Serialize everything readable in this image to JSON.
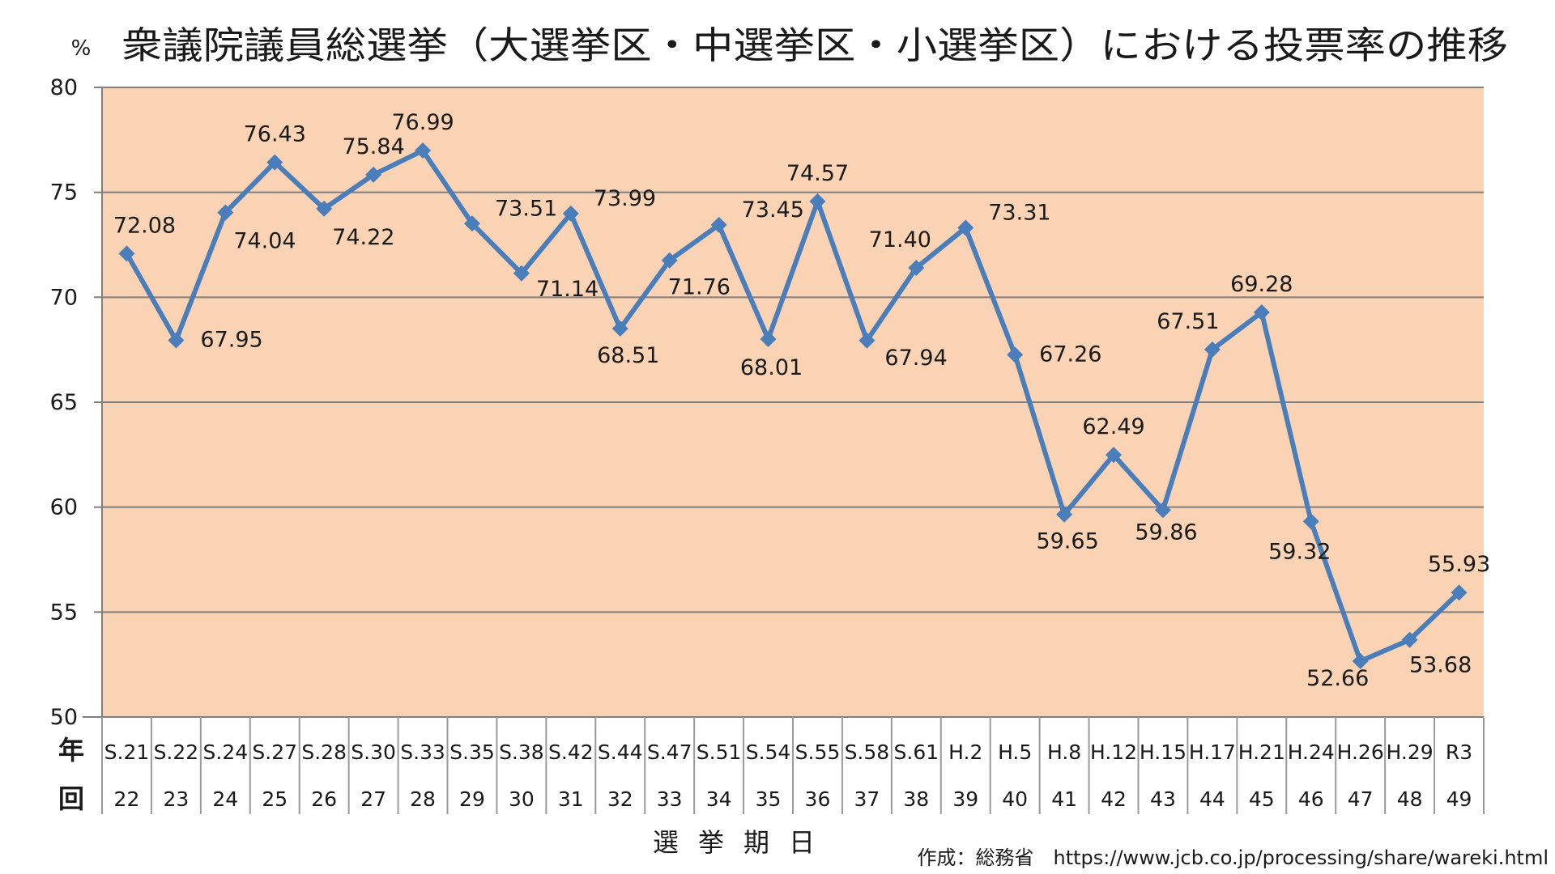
{
  "chart_data": {
    "type": "line",
    "title": "衆議院議員総選挙（大選挙区・中選挙区・小選挙区）における投票率の推移",
    "ylabel": "%",
    "xlabel": "選挙期日",
    "ylim": [
      50,
      80
    ],
    "yticks": [
      "80",
      "75",
      "70",
      "65",
      "60",
      "55",
      "50"
    ],
    "grid": true,
    "row_headers": {
      "year": "年",
      "round": "回"
    },
    "categories": [
      "S.21",
      "S.22",
      "S.24",
      "S.27",
      "S.28",
      "S.30",
      "S.33",
      "S.35",
      "S.38",
      "S.42",
      "S.44",
      "S.47",
      "S.51",
      "S.54",
      "S.55",
      "S.58",
      "S.61",
      "H.2",
      "H.5",
      "H.8",
      "H.12",
      "H.15",
      "H.17",
      "H.21",
      "H.24",
      "H.26",
      "H.29",
      "R3"
    ],
    "rounds": [
      "22",
      "23",
      "24",
      "25",
      "26",
      "27",
      "28",
      "29",
      "30",
      "31",
      "32",
      "33",
      "34",
      "35",
      "36",
      "37",
      "38",
      "39",
      "40",
      "41",
      "42",
      "43",
      "44",
      "45",
      "46",
      "47",
      "48",
      "49"
    ],
    "series": [
      {
        "values": [
          72.08,
          67.95,
          74.04,
          76.43,
          74.22,
          75.84,
          76.99,
          73.51,
          71.14,
          73.99,
          68.51,
          71.76,
          73.45,
          68.01,
          74.57,
          67.94,
          71.4,
          73.31,
          67.26,
          59.65,
          62.49,
          59.86,
          67.51,
          69.28,
          59.32,
          52.66,
          53.68,
          55.93
        ],
        "labels": [
          "72.08",
          "67.95",
          "74.04",
          "76.43",
          "74.22",
          "75.84",
          "76.99",
          "73.51",
          "71.14",
          "73.99",
          "68.51",
          "71.76",
          "73.45",
          "68.01",
          "74.57",
          "67.94",
          "71.40",
          "73.31",
          "67.26",
          "59.65",
          "62.49",
          "59.86",
          "67.51",
          "69.28",
          "59.32",
          "52.66",
          "53.68",
          "55.93"
        ]
      }
    ],
    "source": "作成：総務省　https://www.jcb.co.jp/processing/share/wareki.html",
    "colors": {
      "plot_bg": "#fad3b4",
      "line": "#4a7ebb",
      "grid": "#808080"
    }
  }
}
